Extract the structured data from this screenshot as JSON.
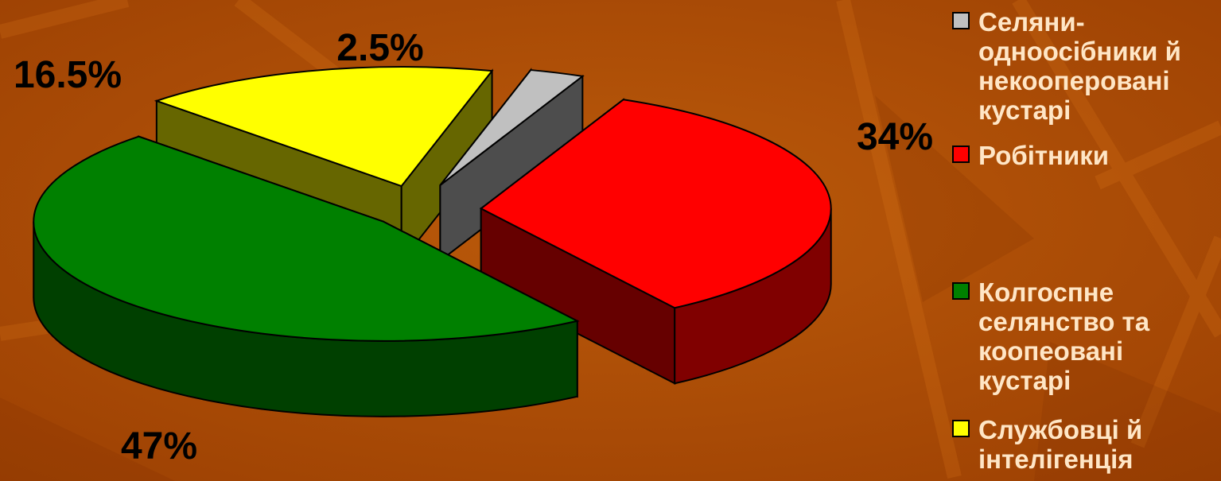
{
  "chart_data": {
    "type": "pie",
    "is3d": true,
    "exploded": true,
    "title": "",
    "unit": "%",
    "slices": [
      {
        "label": "Селяни-одноосібники й некооперовані кустарі",
        "value": 2.5,
        "display": "2.5%",
        "color": "#c0c0c0"
      },
      {
        "label": "Робітники",
        "value": 34,
        "display": "34%",
        "color": "#ff0000"
      },
      {
        "label": "Колгоспне селянство та кооперовані кустарі",
        "value": 47,
        "display": "47%",
        "color": "#008000"
      },
      {
        "label": "Службовці й інтелігенція",
        "value": 16.5,
        "display": "16.5%",
        "color": "#ffff00"
      }
    ],
    "legend": {
      "position": "right",
      "entries": [
        {
          "lines": [
            "Селяни-",
            "одноосібники й",
            "некооперовані",
            "кустарі"
          ],
          "color": "#c0c0c0"
        },
        {
          "lines": [
            "Робітники"
          ],
          "color": "#ff0000"
        },
        {
          "lines": [
            "Колгоспне",
            "селянство та",
            "коопеовані",
            "кустарі"
          ],
          "color": "#008000"
        },
        {
          "lines": [
            "Службовці й",
            "інтелігенція"
          ],
          "color": "#ffff00"
        }
      ]
    }
  }
}
